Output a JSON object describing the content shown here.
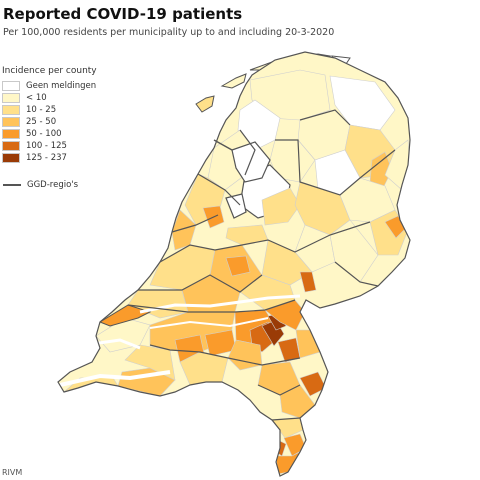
{
  "title": "Reported COVID-19 patients",
  "subtitle": "Per 100,000 residents per municipality up to and including 20-3-2020",
  "legend": {
    "title": "Incidence per county",
    "items": [
      {
        "label": "Geen meldingen",
        "color": "#ffffff"
      },
      {
        "label": "< 10",
        "color": "#fff7c7"
      },
      {
        "label": "10 - 25",
        "color": "#ffe08a"
      },
      {
        "label": "25 - 50",
        "color": "#ffc35a"
      },
      {
        "label": "50 - 100",
        "color": "#fa9b2b"
      },
      {
        "label": "100 - 125",
        "color": "#d86a13"
      },
      {
        "label": "125 - 237",
        "color": "#9a3b06"
      }
    ],
    "ggd_label": "GGD-regio's",
    "ggd_color": "#555555"
  },
  "source": "RIVM",
  "colors": {
    "water": "#ffffff",
    "border": "#555555",
    "thin_border": "#bdbdbd"
  }
}
